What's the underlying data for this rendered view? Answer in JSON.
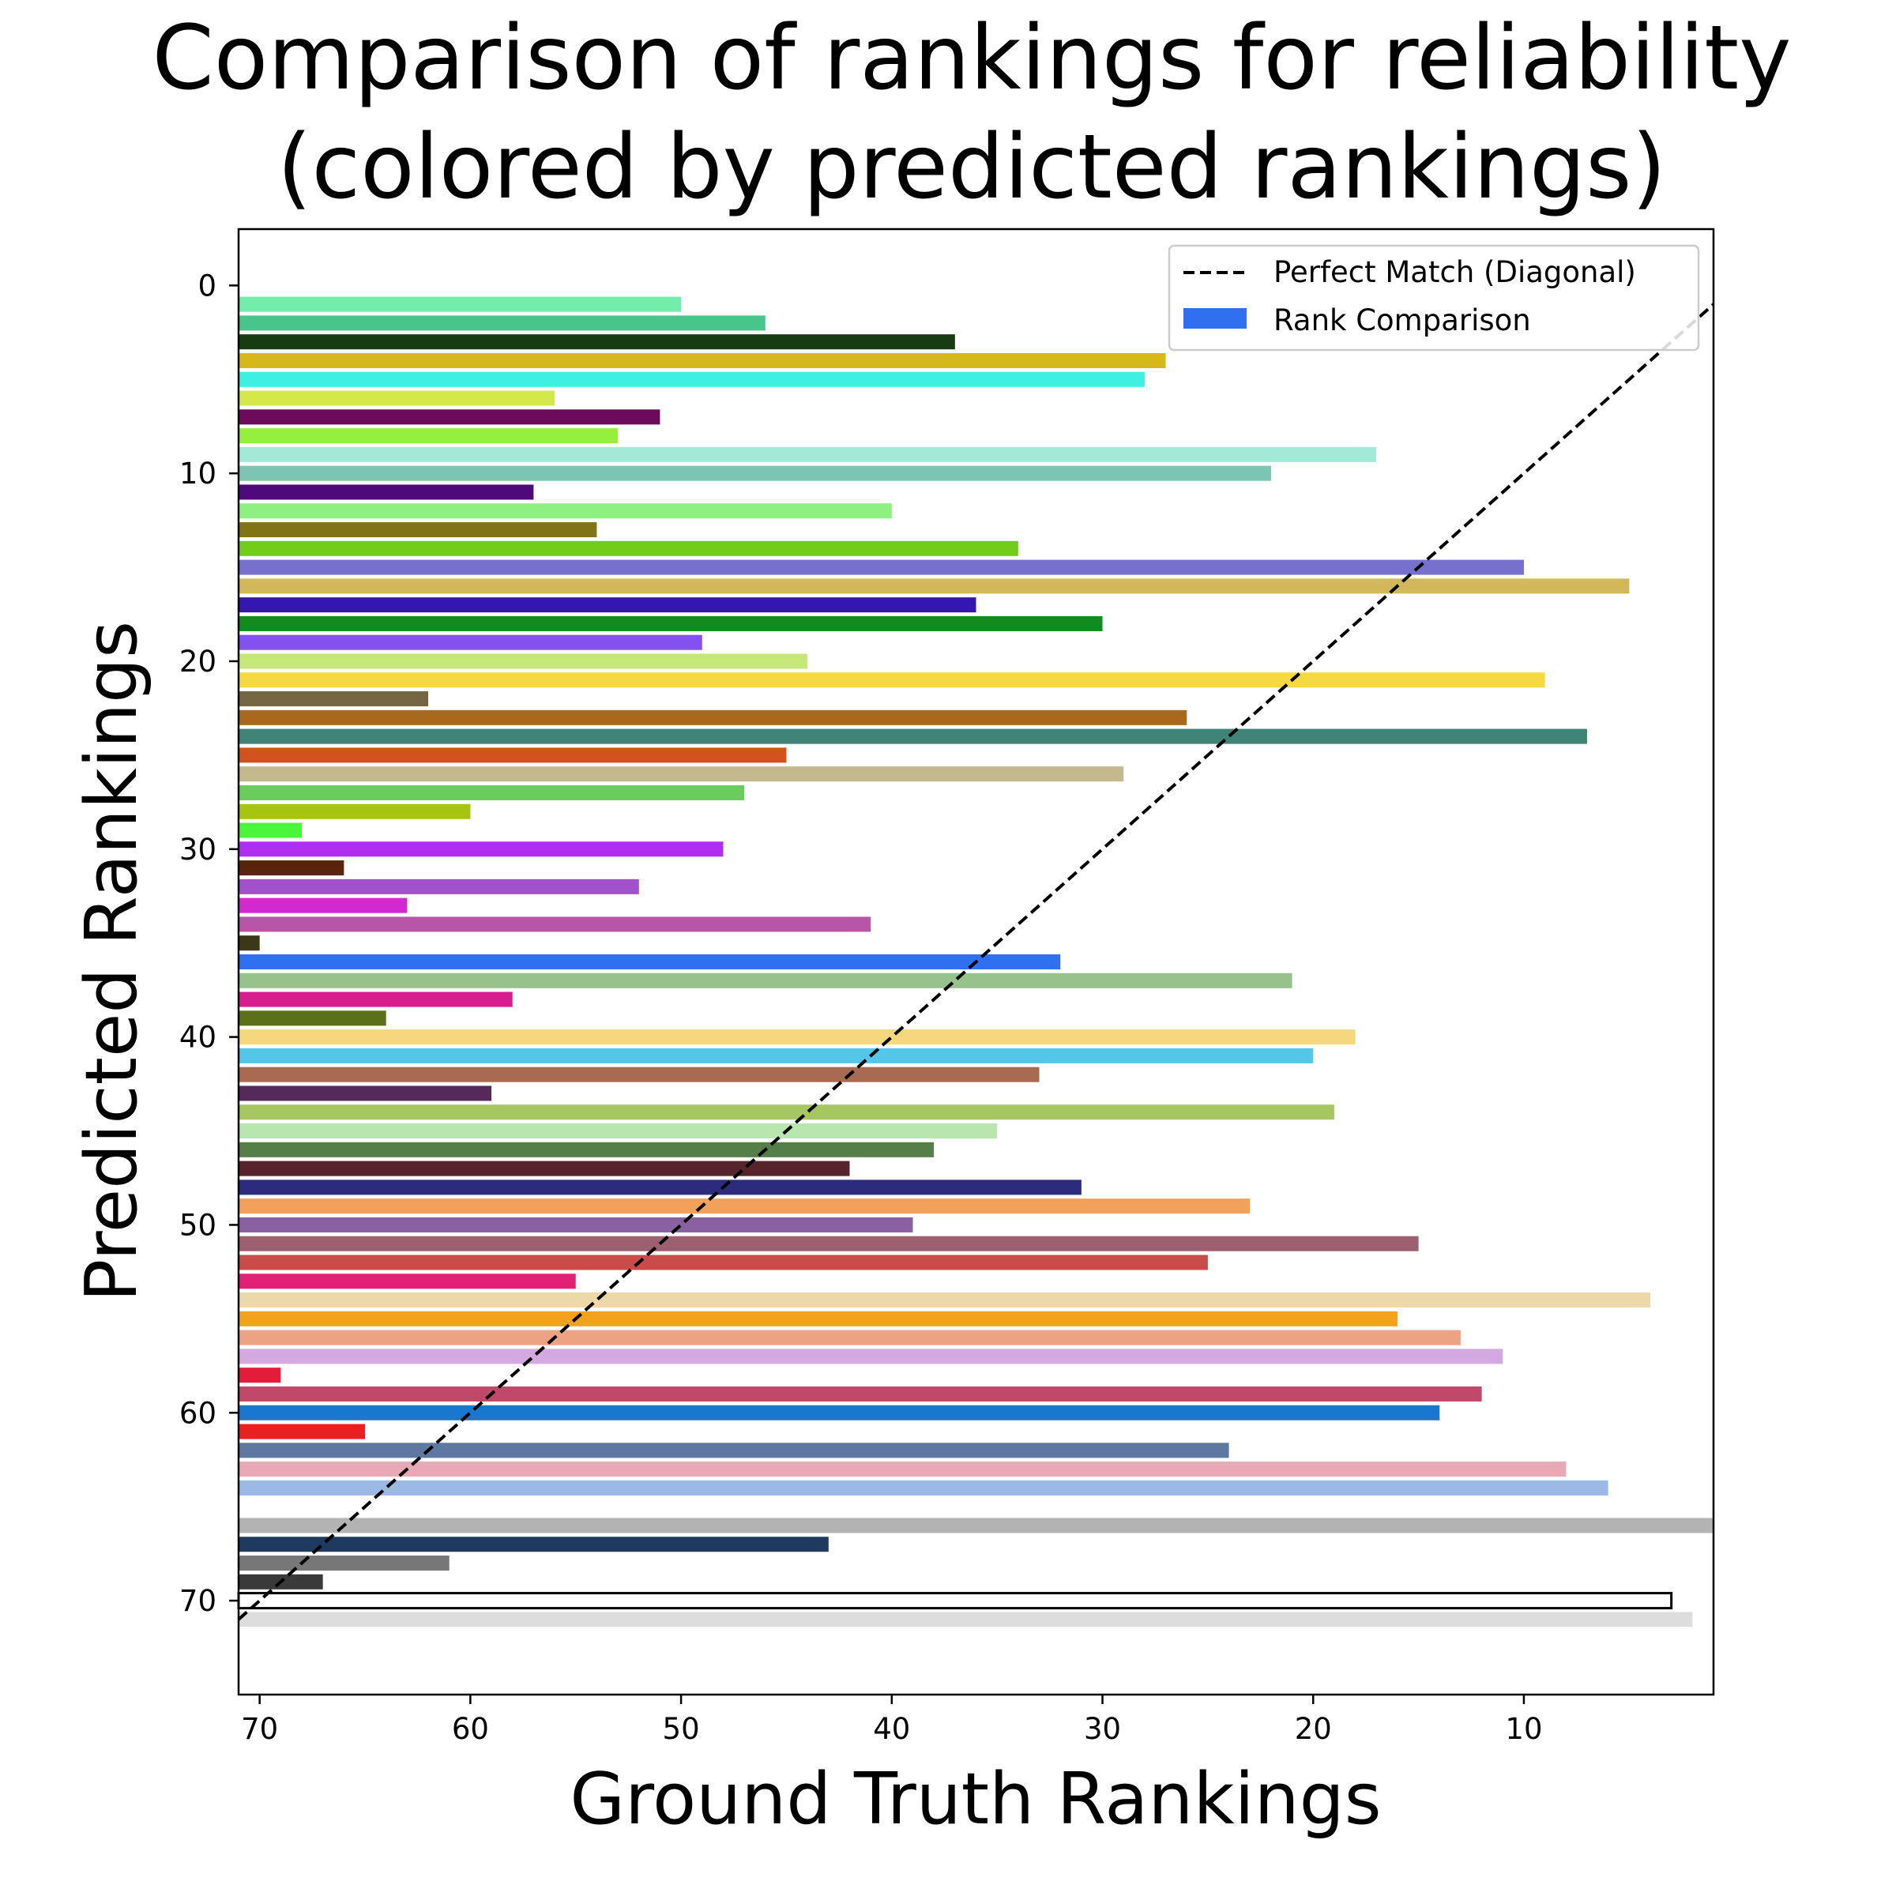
{
  "chart_data": {
    "type": "bar",
    "orientation": "horizontal",
    "title_lines": [
      "Comparison of rankings for reliability",
      "(colored by predicted rankings)"
    ],
    "xlabel": "Ground Truth Rankings",
    "ylabel": "Predicted Rankings",
    "xlim": [
      71,
      1
    ],
    "ylim": [
      75,
      -3
    ],
    "x_ticks": [
      70,
      60,
      50,
      40,
      30,
      20,
      10
    ],
    "y_ticks": [
      0,
      10,
      20,
      30,
      40,
      50,
      60,
      70
    ],
    "grid": false,
    "legend": {
      "position": "top-right",
      "entries": [
        {
          "label": "Perfect Match (Diagonal)",
          "kind": "dashed-line",
          "color": "#000000"
        },
        {
          "label": "Rank Comparison",
          "kind": "patch",
          "color": "#3070f0"
        }
      ]
    },
    "diagonal": {
      "from": [
        71,
        71
      ],
      "to": [
        1,
        1
      ],
      "style": "dashed",
      "color": "#000000"
    },
    "bars": [
      {
        "predicted": 1,
        "ground_truth": 50,
        "color": "#73eeaa"
      },
      {
        "predicted": 2,
        "ground_truth": 46,
        "color": "#47c68c"
      },
      {
        "predicted": 3,
        "ground_truth": 37,
        "color": "#183c12"
      },
      {
        "predicted": 4,
        "ground_truth": 27,
        "color": "#d5b81c"
      },
      {
        "predicted": 5,
        "ground_truth": 28,
        "color": "#3ef0e1"
      },
      {
        "predicted": 6,
        "ground_truth": 56,
        "color": "#d4e84a"
      },
      {
        "predicted": 7,
        "ground_truth": 51,
        "color": "#6c0a5c"
      },
      {
        "predicted": 8,
        "ground_truth": 53,
        "color": "#95ef3e"
      },
      {
        "predicted": 9,
        "ground_truth": 17,
        "color": "#a4e9d8"
      },
      {
        "predicted": 10,
        "ground_truth": 22,
        "color": "#7cc5b2"
      },
      {
        "predicted": 11,
        "ground_truth": 57,
        "color": "#4e0a7a"
      },
      {
        "predicted": 12,
        "ground_truth": 40,
        "color": "#8ff082"
      },
      {
        "predicted": 13,
        "ground_truth": 54,
        "color": "#817414"
      },
      {
        "predicted": 14,
        "ground_truth": 34,
        "color": "#72cc1a"
      },
      {
        "predicted": 15,
        "ground_truth": 10,
        "color": "#7671cc"
      },
      {
        "predicted": 16,
        "ground_truth": 5,
        "color": "#d3b85b"
      },
      {
        "predicted": 17,
        "ground_truth": 36,
        "color": "#3616b0"
      },
      {
        "predicted": 18,
        "ground_truth": 30,
        "color": "#128a1e"
      },
      {
        "predicted": 19,
        "ground_truth": 49,
        "color": "#8352ee"
      },
      {
        "predicted": 20,
        "ground_truth": 44,
        "color": "#c5e878"
      },
      {
        "predicted": 21,
        "ground_truth": 9,
        "color": "#f6d93e"
      },
      {
        "predicted": 22,
        "ground_truth": 62,
        "color": "#746641"
      },
      {
        "predicted": 23,
        "ground_truth": 26,
        "color": "#a8681e"
      },
      {
        "predicted": 24,
        "ground_truth": 7,
        "color": "#3f8476"
      },
      {
        "predicted": 25,
        "ground_truth": 45,
        "color": "#d2521e"
      },
      {
        "predicted": 26,
        "ground_truth": 29,
        "color": "#c4b98c"
      },
      {
        "predicted": 27,
        "ground_truth": 47,
        "color": "#69cc5c"
      },
      {
        "predicted": 28,
        "ground_truth": 60,
        "color": "#a7c410"
      },
      {
        "predicted": 29,
        "ground_truth": 68,
        "color": "#4af63a"
      },
      {
        "predicted": 30,
        "ground_truth": 48,
        "color": "#b02eec"
      },
      {
        "predicted": 31,
        "ground_truth": 66,
        "color": "#5a230d"
      },
      {
        "predicted": 32,
        "ground_truth": 52,
        "color": "#a051cc"
      },
      {
        "predicted": 33,
        "ground_truth": 63,
        "color": "#d22ad0"
      },
      {
        "predicted": 34,
        "ground_truth": 41,
        "color": "#b756a6"
      },
      {
        "predicted": 35,
        "ground_truth": 70,
        "color": "#3c3716"
      },
      {
        "predicted": 36,
        "ground_truth": 32,
        "color": "#3070f0"
      },
      {
        "predicted": 37,
        "ground_truth": 21,
        "color": "#98c28c"
      },
      {
        "predicted": 38,
        "ground_truth": 58,
        "color": "#d81e8e"
      },
      {
        "predicted": 39,
        "ground_truth": 64,
        "color": "#5c7018"
      },
      {
        "predicted": 40,
        "ground_truth": 18,
        "color": "#f5d87e"
      },
      {
        "predicted": 41,
        "ground_truth": 20,
        "color": "#54c6e8"
      },
      {
        "predicted": 42,
        "ground_truth": 33,
        "color": "#a86a50"
      },
      {
        "predicted": 43,
        "ground_truth": 59,
        "color": "#55295a"
      },
      {
        "predicted": 44,
        "ground_truth": 19,
        "color": "#a6c662"
      },
      {
        "predicted": 45,
        "ground_truth": 35,
        "color": "#b9e5ae"
      },
      {
        "predicted": 46,
        "ground_truth": 38,
        "color": "#557e48"
      },
      {
        "predicted": 47,
        "ground_truth": 42,
        "color": "#58242c"
      },
      {
        "predicted": 48,
        "ground_truth": 31,
        "color": "#2d2b7c"
      },
      {
        "predicted": 49,
        "ground_truth": 23,
        "color": "#f3a05a"
      },
      {
        "predicted": 50,
        "ground_truth": 39,
        "color": "#8a61a0"
      },
      {
        "predicted": 51,
        "ground_truth": 15,
        "color": "#9c6070"
      },
      {
        "predicted": 52,
        "ground_truth": 25,
        "color": "#c94c4a"
      },
      {
        "predicted": 53,
        "ground_truth": 55,
        "color": "#e22176"
      },
      {
        "predicted": 54,
        "ground_truth": 4,
        "color": "#ecd8a8"
      },
      {
        "predicted": 55,
        "ground_truth": 16,
        "color": "#f4a21c"
      },
      {
        "predicted": 56,
        "ground_truth": 13,
        "color": "#eba384"
      },
      {
        "predicted": 57,
        "ground_truth": 11,
        "color": "#d4a8e0"
      },
      {
        "predicted": 58,
        "ground_truth": 69,
        "color": "#e41c3c"
      },
      {
        "predicted": 59,
        "ground_truth": 12,
        "color": "#c04868"
      },
      {
        "predicted": 60,
        "ground_truth": 14,
        "color": "#1878d0"
      },
      {
        "predicted": 61,
        "ground_truth": 65,
        "color": "#ea2020"
      },
      {
        "predicted": 62,
        "ground_truth": 24,
        "color": "#5e78a2"
      },
      {
        "predicted": 63,
        "ground_truth": 8,
        "color": "#e8a8b5"
      },
      {
        "predicted": 64,
        "ground_truth": 6,
        "color": "#9cb8e4"
      },
      {
        "predicted": 66,
        "ground_truth": 1,
        "color": "#b3b3b3"
      },
      {
        "predicted": 67,
        "ground_truth": 43,
        "color": "#1e3a5e"
      },
      {
        "predicted": 68,
        "ground_truth": 61,
        "color": "#777777"
      },
      {
        "predicted": 69,
        "ground_truth": 67,
        "color": "#3a3a3a"
      },
      {
        "predicted": 70,
        "ground_truth": 3,
        "color": "#ffffff",
        "outline": "#000000"
      },
      {
        "predicted": 71,
        "ground_truth": 2,
        "color": "#dddddd"
      }
    ]
  }
}
